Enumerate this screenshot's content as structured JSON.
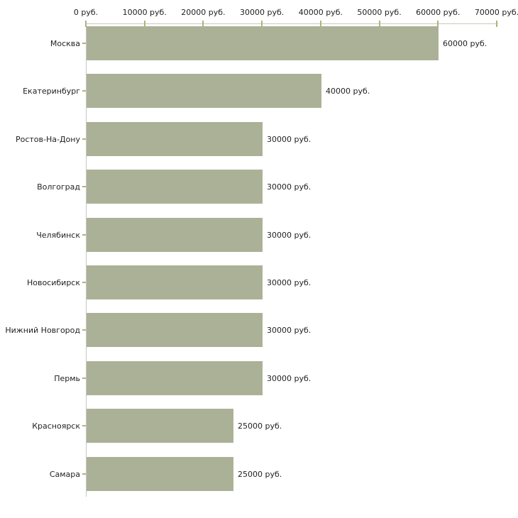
{
  "chart_data": {
    "type": "bar",
    "orientation": "horizontal",
    "categories": [
      "Москва",
      "Екатеринбург",
      "Ростов-На-Дону",
      "Волгоград",
      "Челябинск",
      "Новосибирск",
      "Нижний Новгород",
      "Пермь",
      "Красноярск",
      "Самара"
    ],
    "values": [
      60000,
      40000,
      30000,
      30000,
      30000,
      30000,
      30000,
      30000,
      25000,
      25000
    ],
    "bar_labels": [
      "60000 руб.",
      "40000 руб.",
      "30000 руб.",
      "30000 руб.",
      "30000 руб.",
      "30000 руб.",
      "30000 руб.",
      "30000 руб.",
      "25000 руб.",
      "25000 руб."
    ],
    "x_ticks": [
      {
        "value": 0,
        "label": "0 руб."
      },
      {
        "value": 10000,
        "label": "10000 руб."
      },
      {
        "value": 20000,
        "label": "20000 руб."
      },
      {
        "value": 30000,
        "label": "30000 руб."
      },
      {
        "value": 40000,
        "label": "40000 руб."
      },
      {
        "value": 50000,
        "label": "50000 руб."
      },
      {
        "value": 60000,
        "label": "60000 руб."
      },
      {
        "value": 70000,
        "label": "70000 руб."
      }
    ],
    "xlim": [
      0,
      70000
    ],
    "unit": "руб.",
    "grid": false,
    "legend": null,
    "colors": {
      "bar": "#abb196",
      "axis_vertical": "#c6c6c6",
      "axis_horizontal": "#c9c9bd",
      "tick": "#b2b27b",
      "text": "#1f1f1f",
      "background": "#ffffff"
    }
  }
}
